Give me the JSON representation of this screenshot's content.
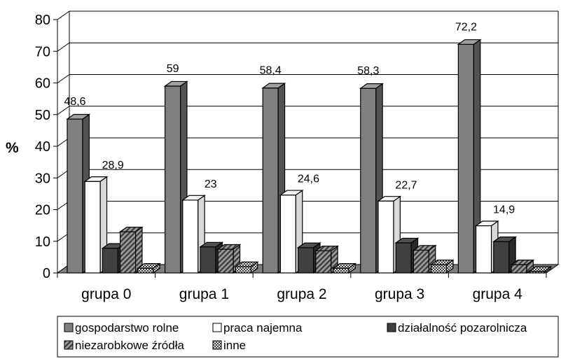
{
  "chart_data": {
    "type": "bar",
    "title": "",
    "xlabel": "",
    "ylabel": "%",
    "ylim": [
      0,
      80
    ],
    "yticks": [
      0,
      10,
      20,
      30,
      40,
      50,
      60,
      70,
      80
    ],
    "grid": true,
    "legend_position": "bottom",
    "categories": [
      "grupa 0",
      "grupa 1",
      "grupa 2",
      "grupa 3",
      "grupa 4"
    ],
    "series": [
      {
        "name": "gospodarstwo rolne",
        "values": [
          48.6,
          59,
          58.4,
          58.3,
          72.2
        ],
        "labels": [
          "48,6",
          "59",
          "58,4",
          "58,3",
          "72,2"
        ],
        "color": "#808080",
        "pattern": "solid"
      },
      {
        "name": "praca najemna",
        "values": [
          28.9,
          23,
          24.6,
          22.7,
          14.9
        ],
        "labels": [
          "28,9",
          "23",
          "24,6",
          "22,7",
          "14,9"
        ],
        "color": "#ffffff",
        "pattern": "solid"
      },
      {
        "name": "działalność pozarolnicza",
        "values": [
          7.8,
          8.2,
          8.0,
          9.5,
          9.9
        ],
        "color": "#404040",
        "pattern": "solid"
      },
      {
        "name": "niezarobkowe źródła",
        "values": [
          13.0,
          7.5,
          7.0,
          7.2,
          2.6
        ],
        "color": "#707070",
        "pattern": "hatch"
      },
      {
        "name": "inne",
        "values": [
          1.5,
          2.0,
          1.5,
          2.6,
          0.5
        ],
        "color": "#a0a0a0",
        "pattern": "checker"
      }
    ]
  }
}
